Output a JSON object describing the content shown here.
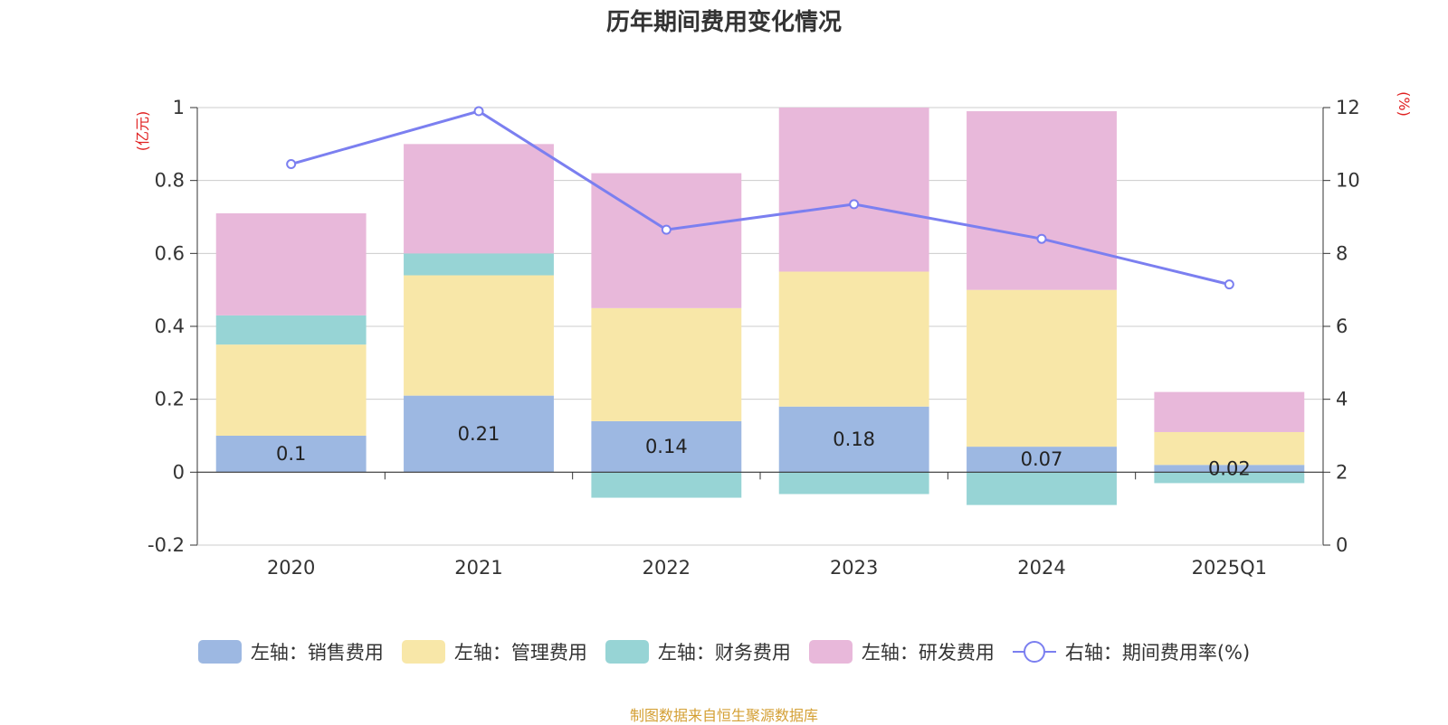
{
  "chart_data": {
    "type": "bar",
    "title": "历年期间费用变化情况",
    "categories": [
      "2020",
      "2021",
      "2022",
      "2023",
      "2024",
      "2025Q1"
    ],
    "left_axis": {
      "unit_label": "(亿元)",
      "min": -0.2,
      "max": 1,
      "ticks": [
        "-0.2",
        "0",
        "0.2",
        "0.4",
        "0.6",
        "0.8",
        "1"
      ]
    },
    "right_axis": {
      "unit_label": "(%)",
      "min": 0,
      "max": 12,
      "ticks": [
        "0",
        "2",
        "4",
        "6",
        "8",
        "10",
        "12"
      ]
    },
    "series": [
      {
        "name": "左轴：销售费用",
        "kind": "bar",
        "axis": "left",
        "color": "#9db8e2",
        "values": [
          0.1,
          0.21,
          0.14,
          0.18,
          0.07,
          0.02
        ],
        "labels": [
          "0.1",
          "0.21",
          "0.14",
          "0.18",
          "0.07",
          "0.02"
        ]
      },
      {
        "name": "左轴：管理费用",
        "kind": "bar",
        "axis": "left",
        "color": "#f8e7a8",
        "values": [
          0.25,
          0.33,
          0.31,
          0.37,
          0.43,
          0.09
        ]
      },
      {
        "name": "左轴：财务费用",
        "kind": "bar",
        "axis": "left",
        "color": "#97d4d5",
        "values": [
          0.08,
          0.06,
          -0.07,
          -0.06,
          -0.09,
          -0.03
        ]
      },
      {
        "name": "左轴：研发费用",
        "kind": "bar",
        "axis": "left",
        "color": "#e8b8da",
        "values": [
          0.28,
          0.3,
          0.37,
          0.45,
          0.49,
          0.11
        ]
      },
      {
        "name": "右轴：期间费用率(%)",
        "kind": "line",
        "axis": "right",
        "color": "#7b7ff0",
        "values": [
          10.45,
          11.9,
          8.65,
          9.35,
          8.4,
          7.15
        ]
      }
    ],
    "grid": true,
    "legend_position": "bottom"
  },
  "source_text": "制图数据来自恒生聚源数据库",
  "colors": {
    "unit_label": "#e02020",
    "source_text": "#d4a035",
    "axis": "#333333",
    "grid": "#cccccc"
  }
}
